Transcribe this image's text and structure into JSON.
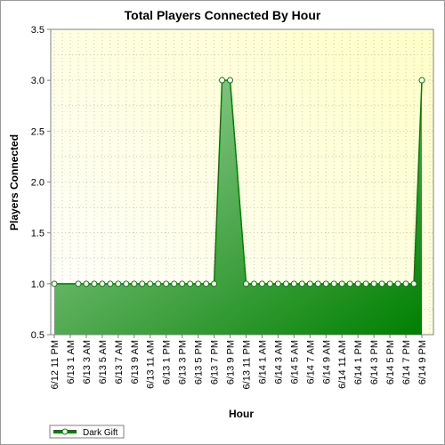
{
  "chart_data": {
    "type": "area",
    "title": "Total Players Connected By Hour",
    "xlabel": "Hour",
    "ylabel": "Players Connected",
    "ylim": [
      0.5,
      3.5
    ],
    "yticks": [
      "0.5",
      "1.0",
      "1.5",
      "2.0",
      "2.5",
      "3.0",
      "3.5"
    ],
    "grid": true,
    "legend_position": "bottom-left",
    "x_tick_labels": [
      "6/12 11 PM",
      "6/13 1 AM",
      "6/13 3 AM",
      "6/13 5 AM",
      "6/13 7 AM",
      "6/13 9 AM",
      "6/13 11 AM",
      "6/13 1 PM",
      "6/13 3 PM",
      "6/13 5 PM",
      "6/13 7 PM",
      "6/13 9 PM",
      "6/13 11 PM",
      "6/14 1 AM",
      "6/14 3 AM",
      "6/14 5 AM",
      "6/14 7 AM",
      "6/14 9 AM",
      "6/14 11 AM",
      "6/14 1 PM",
      "6/14 3 PM",
      "6/14 5 PM",
      "6/14 7 PM",
      "6/14 9 PM"
    ],
    "x_start": "6/12 11 PM",
    "series": [
      {
        "name": "Dark Gift",
        "color": "#008000",
        "points": [
          [
            0,
            1
          ],
          [
            3,
            1
          ],
          [
            4,
            1
          ],
          [
            5,
            1
          ],
          [
            6,
            1
          ],
          [
            7,
            1
          ],
          [
            8,
            1
          ],
          [
            9,
            1
          ],
          [
            10,
            1
          ],
          [
            11,
            1
          ],
          [
            12,
            1
          ],
          [
            13,
            1
          ],
          [
            14,
            1
          ],
          [
            15,
            1
          ],
          [
            16,
            1
          ],
          [
            17,
            1
          ],
          [
            18,
            1
          ],
          [
            19,
            1
          ],
          [
            20,
            1
          ],
          [
            21,
            3
          ],
          [
            22,
            3
          ],
          [
            24,
            1
          ],
          [
            25,
            1
          ],
          [
            26,
            1
          ],
          [
            27,
            1
          ],
          [
            28,
            1
          ],
          [
            29,
            1
          ],
          [
            30,
            1
          ],
          [
            31,
            1
          ],
          [
            32,
            1
          ],
          [
            33,
            1
          ],
          [
            34,
            1
          ],
          [
            35,
            1
          ],
          [
            36,
            1
          ],
          [
            37,
            1
          ],
          [
            38,
            1
          ],
          [
            39,
            1
          ],
          [
            40,
            1
          ],
          [
            41,
            1
          ],
          [
            42,
            1
          ],
          [
            43,
            1
          ],
          [
            44,
            1
          ],
          [
            45,
            1
          ],
          [
            46,
            3
          ]
        ]
      }
    ]
  }
}
